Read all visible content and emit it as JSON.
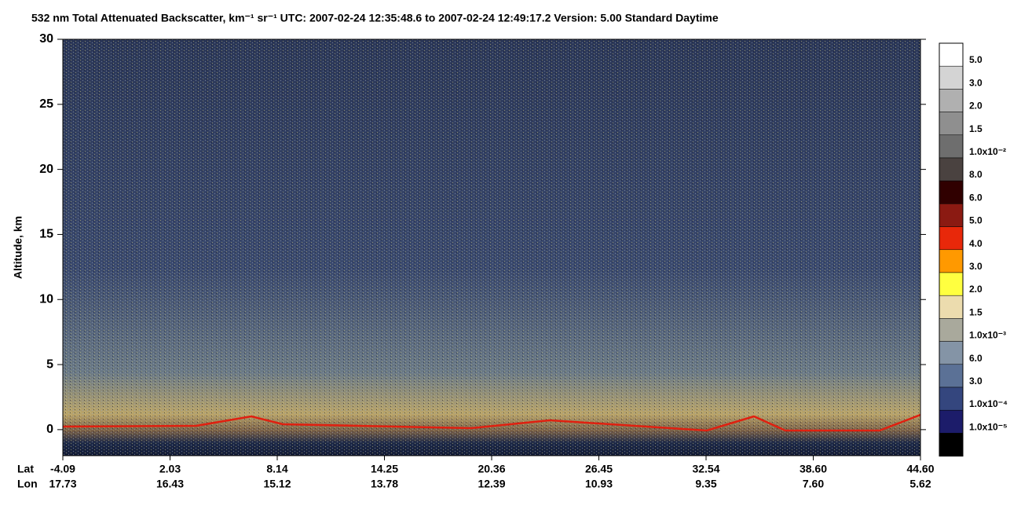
{
  "chart_data": {
    "type": "heatmap",
    "title": "532 nm Total Attenuated Backscatter, km⁻¹ sr⁻¹    UTC:  2007-02-24 12:35:48.6  to  2007-02-24 12:49:17.2    Version: 5.00  Standard  Daytime",
    "ylabel": "Altitude, km",
    "ylim": [
      -2,
      30
    ],
    "yticks": [
      0,
      5,
      10,
      15,
      20,
      25,
      30
    ],
    "x_rows": [
      {
        "name": "Lat",
        "labels": [
          "-4.09",
          "2.03",
          "8.14",
          "14.25",
          "20.36",
          "26.45",
          "32.54",
          "38.60",
          "44.60"
        ]
      },
      {
        "name": "Lon",
        "labels": [
          "17.73",
          "16.43",
          "15.12",
          "13.78",
          "12.39",
          "10.93",
          "9.35",
          "7.60",
          "5.62"
        ]
      }
    ],
    "colorbar": {
      "colors": [
        "#ffffff",
        "#d4d4d4",
        "#b0b0b0",
        "#8f8f8f",
        "#6e6e6e",
        "#4a4240",
        "#300000",
        "#8b1a12",
        "#e8280a",
        "#ff9900",
        "#ffff40",
        "#ecdcae",
        "#a9a99c",
        "#8494a6",
        "#5b7196",
        "#34467e",
        "#1c1c6a",
        "#000000"
      ],
      "labels": [
        "5.0",
        "3.0",
        "2.0",
        "1.5",
        "1.0x10⁻²",
        "8.0",
        "6.0",
        "5.0",
        "4.0",
        "3.0",
        "2.0",
        "1.5",
        "1.0x10⁻³",
        "6.0",
        "3.0",
        "1.0x10⁻⁴",
        "1.0x10⁻⁵"
      ]
    }
  }
}
